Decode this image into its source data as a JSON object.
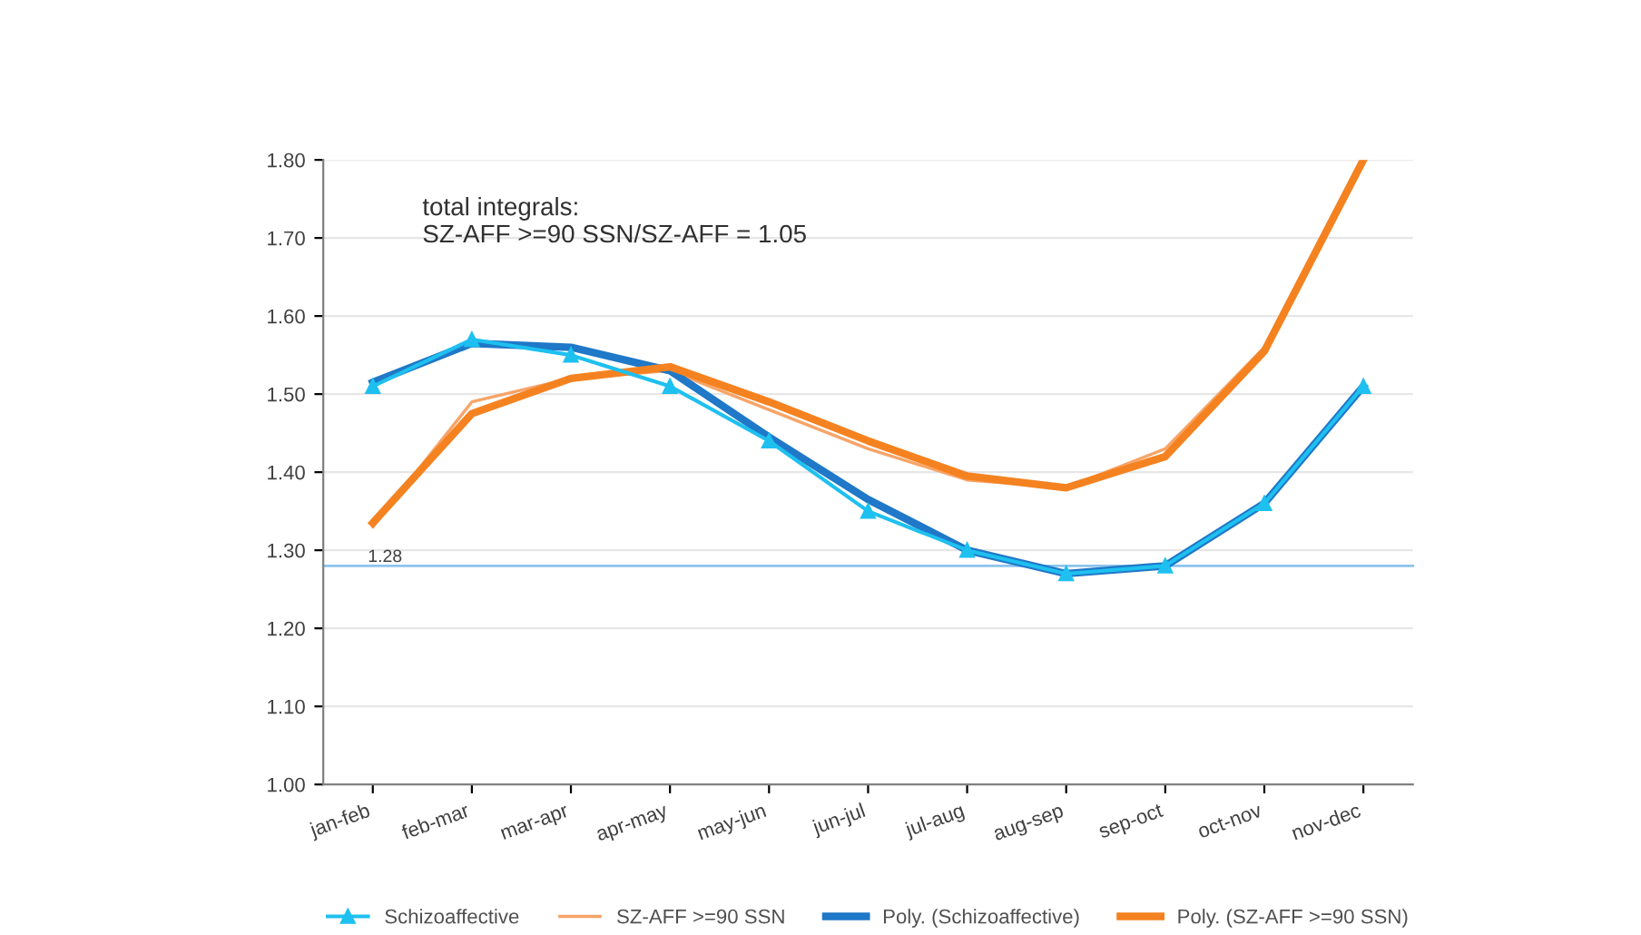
{
  "chart_data": {
    "type": "line",
    "categories": [
      "jan-feb",
      "feb-mar",
      "mar-apr",
      "apr-may",
      "may-jun",
      "jun-jul",
      "jul-aug",
      "aug-sep",
      "sep-oct",
      "oct-nov",
      "nov-dec"
    ],
    "series": [
      {
        "name": "Schizoaffective",
        "color": "#1ec0f0",
        "marker": "triangle",
        "values": [
          1.51,
          1.57,
          1.55,
          1.51,
          1.44,
          1.35,
          1.3,
          1.27,
          1.28,
          1.36,
          1.51
        ]
      },
      {
        "name": "SZ-AFF >=90 SSN",
        "color": "#f7a468",
        "marker": "none",
        "values": [
          1.33,
          1.49,
          1.52,
          1.53,
          1.48,
          1.43,
          1.39,
          1.38,
          1.43,
          1.56,
          1.8
        ]
      },
      {
        "name": "Poly. (Schizoaffective)",
        "color": "#1f78c8",
        "marker": "none",
        "values": [
          1.515,
          1.565,
          1.56,
          1.53,
          1.445,
          1.365,
          1.3,
          1.27,
          1.28,
          1.36,
          1.51
        ]
      },
      {
        "name": "Poly. (SZ-AFF >=90 SSN)",
        "color": "#f58220",
        "marker": "none",
        "values": [
          1.335,
          1.475,
          1.52,
          1.535,
          1.49,
          1.44,
          1.395,
          1.38,
          1.42,
          1.555,
          1.8
        ]
      }
    ],
    "ylim": [
      1.0,
      1.8
    ],
    "yticks": [
      {
        "value": 1.0,
        "label": "1.00"
      },
      {
        "value": 1.1,
        "label": "1.10"
      },
      {
        "value": 1.2,
        "label": "1.20"
      },
      {
        "value": 1.3,
        "label": "1.30"
      },
      {
        "value": 1.4,
        "label": "1.40"
      },
      {
        "value": 1.5,
        "label": "1.50"
      },
      {
        "value": 1.6,
        "label": "1.60"
      },
      {
        "value": 1.7,
        "label": "1.70"
      },
      {
        "value": 1.8,
        "label": "1.80"
      }
    ],
    "ref_lines": [
      {
        "axis": "y",
        "value": 1.28,
        "label": "1.28",
        "color": "#8cc4ec"
      }
    ],
    "annotations": [
      "total integrals:\nSZ-AFF >=90 SSN/SZ-AFF = 1.05"
    ],
    "grid": "y",
    "legend": "bottom"
  }
}
